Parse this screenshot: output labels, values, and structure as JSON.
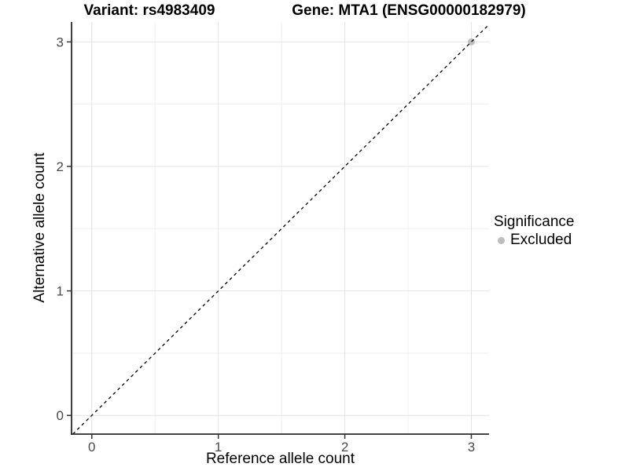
{
  "titles": {
    "variant": "Variant: rs4983409",
    "gene": "Gene: MTA1 (ENSG00000182979)"
  },
  "axes": {
    "x": {
      "label": "Reference allele count",
      "tick_labels": [
        "0",
        "1",
        "2",
        "3"
      ]
    },
    "y": {
      "label": "Alternative allele count",
      "tick_labels": [
        "0",
        "1",
        "2",
        "3"
      ]
    }
  },
  "legend": {
    "title": "Significance",
    "items": [
      {
        "label": "Excluded",
        "color": "#bebebe",
        "marker": "circle-icon"
      }
    ]
  },
  "chart_data": {
    "type": "scatter",
    "title": "Variant: rs4983409 | Gene: MTA1 (ENSG00000182979)",
    "xlabel": "Reference allele count",
    "ylabel": "Alternative allele count",
    "xlim": [
      -0.16,
      3.14
    ],
    "ylim": [
      -0.15,
      3.16
    ],
    "x_ticks": [
      0,
      1,
      2,
      3
    ],
    "y_ticks": [
      0,
      1,
      2,
      3
    ],
    "x_minor_ticks": [
      0.5,
      1.5,
      2.5
    ],
    "y_minor_ticks": [
      0.5,
      1.5,
      2.5
    ],
    "grid": true,
    "legend_position": "right",
    "series": [
      {
        "name": "Excluded",
        "color": "#bebebe",
        "points": [
          {
            "x": 3,
            "y": 3
          }
        ]
      }
    ],
    "reference_line": {
      "slope": 1,
      "intercept": 0,
      "style": "dashed",
      "color": "#000000"
    },
    "colors": {
      "major_grid": "#e4e4e4",
      "minor_grid": "#f1f1f1",
      "axis_line": "#2a2a2a",
      "tick_mark": "#333333",
      "tick_label": "#4a4a4a"
    }
  }
}
